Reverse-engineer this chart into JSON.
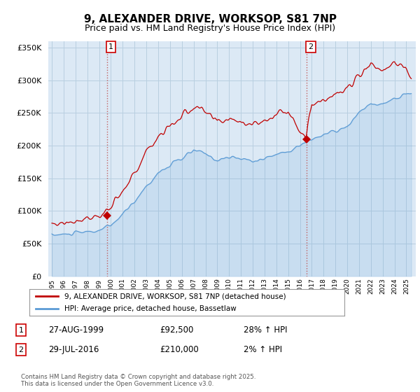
{
  "title": "9, ALEXANDER DRIVE, WORKSOP, S81 7NP",
  "subtitle": "Price paid vs. HM Land Registry's House Price Index (HPI)",
  "legend_line1": "9, ALEXANDER DRIVE, WORKSOP, S81 7NP (detached house)",
  "legend_line2": "HPI: Average price, detached house, Bassetlaw",
  "annotation1": {
    "label": "1",
    "date": "27-AUG-1999",
    "price": "£92,500",
    "hpi": "28% ↑ HPI",
    "x_year": 1999.65,
    "y": 92500
  },
  "annotation2": {
    "label": "2",
    "date": "29-JUL-2016",
    "price": "£210,000",
    "hpi": "2% ↑ HPI",
    "x_year": 2016.56,
    "y": 210000
  },
  "footer": "Contains HM Land Registry data © Crown copyright and database right 2025.\nThis data is licensed under the Open Government Licence v3.0.",
  "hpi_color": "#5b9bd5",
  "price_color": "#c00000",
  "dashed_color": "#c05050",
  "chart_bg_color": "#dce9f5",
  "background_color": "#ffffff",
  "grid_color": "#b8cfe0",
  "ylim": [
    0,
    360000
  ],
  "yticks": [
    0,
    50000,
    100000,
    150000,
    200000,
    250000,
    300000,
    350000
  ],
  "xlim_start": 1994.7,
  "xlim_end": 2025.8
}
